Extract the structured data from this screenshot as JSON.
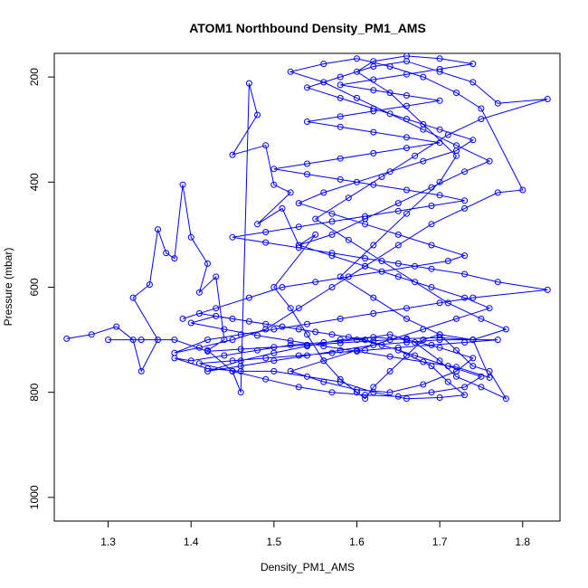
{
  "chart_data": {
    "type": "line",
    "title": "ATOM1 Northbound Density_PM1_AMS",
    "xlabel": "Density_PM1_AMS",
    "ylabel": "Pressure (mbar)",
    "xlim": [
      1.235,
      1.845
    ],
    "ylim": [
      1045,
      155
    ],
    "y_axis_inverted": true,
    "xticks": [
      "1.3",
      "1.4",
      "1.5",
      "1.6",
      "1.7",
      "1.8"
    ],
    "xtick_values": [
      1.3,
      1.4,
      1.5,
      1.6,
      1.7,
      1.8
    ],
    "yticks": [
      "200",
      "400",
      "600",
      "800",
      "1000"
    ],
    "ytick_values": [
      200,
      400,
      600,
      800,
      1000
    ],
    "marker": "open-circle",
    "color": "#0000ff",
    "grid": false,
    "series": [
      {
        "points": [
          [
            1.25,
            698
          ],
          [
            1.28,
            690
          ],
          [
            1.31,
            675
          ],
          [
            1.33,
            700
          ],
          [
            1.34,
            760
          ],
          [
            1.36,
            700
          ],
          [
            1.33,
            620
          ],
          [
            1.35,
            595
          ],
          [
            1.36,
            490
          ],
          [
            1.37,
            535
          ],
          [
            1.38,
            545
          ],
          [
            1.39,
            405
          ],
          [
            1.4,
            505
          ],
          [
            1.42,
            555
          ],
          [
            1.41,
            610
          ],
          [
            1.43,
            580
          ],
          [
            1.44,
            700
          ],
          [
            1.42,
            720
          ],
          [
            1.45,
            760
          ],
          [
            1.46,
            800
          ],
          [
            1.47,
            212
          ],
          [
            1.48,
            272
          ],
          [
            1.45,
            348
          ],
          [
            1.49,
            330
          ],
          [
            1.5,
            405
          ],
          [
            1.52,
            420
          ],
          [
            1.48,
            480
          ],
          [
            1.51,
            450
          ],
          [
            1.53,
            520
          ],
          [
            1.55,
            500
          ],
          [
            1.5,
            600
          ],
          [
            1.52,
            640
          ],
          [
            1.54,
            690
          ],
          [
            1.56,
            740
          ],
          [
            1.58,
            775
          ],
          [
            1.6,
            800
          ],
          [
            1.61,
            812
          ],
          [
            1.62,
            790
          ],
          [
            1.64,
            760
          ],
          [
            1.66,
            730
          ],
          [
            1.68,
            700
          ],
          [
            1.7,
            690
          ],
          [
            1.72,
            720
          ],
          [
            1.74,
            750
          ],
          [
            1.76,
            760
          ],
          [
            1.78,
            812
          ],
          [
            1.75,
            790
          ],
          [
            1.72,
            770
          ],
          [
            1.7,
            740
          ],
          [
            1.67,
            705
          ],
          [
            1.64,
            690
          ],
          [
            1.6,
            700
          ],
          [
            1.56,
            705
          ],
          [
            1.52,
            710
          ],
          [
            1.48,
            720
          ],
          [
            1.44,
            730
          ],
          [
            1.4,
            740
          ],
          [
            1.38,
            735
          ],
          [
            1.42,
            755
          ],
          [
            1.46,
            760
          ],
          [
            1.5,
            760
          ],
          [
            1.54,
            770
          ],
          [
            1.58,
            780
          ],
          [
            1.62,
            800
          ],
          [
            1.66,
            812
          ],
          [
            1.7,
            810
          ],
          [
            1.73,
            805
          ],
          [
            1.71,
            780
          ],
          [
            1.69,
            750
          ],
          [
            1.65,
            720
          ],
          [
            1.61,
            700
          ],
          [
            1.57,
            690
          ],
          [
            1.53,
            680
          ],
          [
            1.49,
            670
          ],
          [
            1.45,
            660
          ],
          [
            1.41,
            650
          ],
          [
            1.39,
            660
          ],
          [
            1.43,
            640
          ],
          [
            1.47,
            620
          ],
          [
            1.51,
            600
          ],
          [
            1.55,
            590
          ],
          [
            1.59,
            580
          ],
          [
            1.63,
            570
          ],
          [
            1.67,
            560
          ],
          [
            1.71,
            550
          ],
          [
            1.73,
            540
          ],
          [
            1.69,
            520
          ],
          [
            1.65,
            500
          ],
          [
            1.61,
            480
          ],
          [
            1.57,
            460
          ],
          [
            1.53,
            440
          ],
          [
            1.56,
            420
          ],
          [
            1.6,
            400
          ],
          [
            1.64,
            380
          ],
          [
            1.68,
            360
          ],
          [
            1.72,
            340
          ],
          [
            1.74,
            320
          ],
          [
            1.7,
            300
          ],
          [
            1.66,
            280
          ],
          [
            1.62,
            260
          ],
          [
            1.58,
            240
          ],
          [
            1.54,
            220
          ],
          [
            1.58,
            200
          ],
          [
            1.62,
            180
          ],
          [
            1.66,
            170
          ],
          [
            1.7,
            190
          ],
          [
            1.74,
            210
          ],
          [
            1.77,
            250
          ],
          [
            1.83,
            242
          ],
          [
            1.75,
            280
          ],
          [
            1.71,
            310
          ],
          [
            1.67,
            350
          ],
          [
            1.63,
            390
          ],
          [
            1.59,
            430
          ],
          [
            1.55,
            470
          ],
          [
            1.59,
            510
          ],
          [
            1.63,
            550
          ],
          [
            1.67,
            590
          ],
          [
            1.71,
            630
          ],
          [
            1.75,
            660
          ],
          [
            1.78,
            680
          ],
          [
            1.74,
            700
          ],
          [
            1.7,
            700
          ],
          [
            1.66,
            705
          ],
          [
            1.62,
            710
          ],
          [
            1.58,
            720
          ],
          [
            1.54,
            730
          ],
          [
            1.5,
            740
          ],
          [
            1.46,
            750
          ],
          [
            1.42,
            760
          ],
          [
            1.46,
            740
          ],
          [
            1.5,
            725
          ],
          [
            1.54,
            712
          ],
          [
            1.58,
            700
          ],
          [
            1.62,
            695
          ],
          [
            1.66,
            700
          ],
          [
            1.7,
            715
          ],
          [
            1.74,
            735
          ],
          [
            1.72,
            760
          ],
          [
            1.68,
            785
          ],
          [
            1.64,
            800
          ],
          [
            1.6,
            795
          ],
          [
            1.56,
            780
          ],
          [
            1.52,
            760
          ],
          [
            1.56,
            740
          ],
          [
            1.6,
            720
          ],
          [
            1.64,
            700
          ],
          [
            1.68,
            680
          ],
          [
            1.72,
            660
          ],
          [
            1.76,
            640
          ],
          [
            1.73,
            620
          ],
          [
            1.69,
            600
          ],
          [
            1.65,
            580
          ],
          [
            1.61,
            560
          ],
          [
            1.57,
            540
          ],
          [
            1.53,
            520
          ],
          [
            1.57,
            500
          ],
          [
            1.61,
            470
          ],
          [
            1.65,
            440
          ],
          [
            1.69,
            410
          ],
          [
            1.73,
            380
          ],
          [
            1.76,
            360
          ],
          [
            1.72,
            330
          ],
          [
            1.68,
            300
          ],
          [
            1.64,
            270
          ],
          [
            1.6,
            240
          ],
          [
            1.56,
            210
          ],
          [
            1.52,
            190
          ],
          [
            1.56,
            175
          ],
          [
            1.6,
            165
          ],
          [
            1.64,
            180
          ],
          [
            1.68,
            200
          ],
          [
            1.72,
            230
          ],
          [
            1.75,
            260
          ],
          [
            1.8,
            415
          ],
          [
            1.77,
            420
          ],
          [
            1.73,
            450
          ],
          [
            1.69,
            480
          ],
          [
            1.65,
            520
          ],
          [
            1.61,
            560
          ],
          [
            1.57,
            600
          ],
          [
            1.53,
            640
          ],
          [
            1.49,
            680
          ],
          [
            1.45,
            700
          ],
          [
            1.41,
            715
          ],
          [
            1.38,
            725
          ],
          [
            1.42,
            700
          ],
          [
            1.46,
            690
          ],
          [
            1.5,
            680
          ],
          [
            1.54,
            670
          ],
          [
            1.58,
            660
          ],
          [
            1.62,
            650
          ],
          [
            1.66,
            640
          ],
          [
            1.7,
            630
          ],
          [
            1.74,
            620
          ],
          [
            1.83,
            605
          ],
          [
            1.77,
            590
          ],
          [
            1.73,
            575
          ],
          [
            1.69,
            565
          ],
          [
            1.65,
            555
          ],
          [
            1.61,
            545
          ],
          [
            1.57,
            535
          ],
          [
            1.53,
            525
          ],
          [
            1.49,
            515
          ],
          [
            1.45,
            505
          ],
          [
            1.49,
            495
          ],
          [
            1.53,
            485
          ],
          [
            1.57,
            475
          ],
          [
            1.61,
            465
          ],
          [
            1.65,
            455
          ],
          [
            1.69,
            445
          ],
          [
            1.73,
            435
          ],
          [
            1.7,
            425
          ],
          [
            1.66,
            415
          ],
          [
            1.62,
            405
          ],
          [
            1.58,
            395
          ],
          [
            1.54,
            385
          ],
          [
            1.5,
            375
          ],
          [
            1.54,
            365
          ],
          [
            1.58,
            355
          ],
          [
            1.62,
            345
          ],
          [
            1.66,
            335
          ],
          [
            1.7,
            325
          ],
          [
            1.66,
            315
          ],
          [
            1.62,
            305
          ],
          [
            1.58,
            295
          ],
          [
            1.54,
            285
          ],
          [
            1.58,
            275
          ],
          [
            1.62,
            265
          ],
          [
            1.66,
            255
          ],
          [
            1.7,
            245
          ],
          [
            1.66,
            235
          ],
          [
            1.62,
            225
          ],
          [
            1.58,
            215
          ],
          [
            1.62,
            205
          ],
          [
            1.66,
            195
          ],
          [
            1.7,
            185
          ],
          [
            1.74,
            175
          ],
          [
            1.7,
            165
          ],
          [
            1.66,
            160
          ],
          [
            1.62,
            170
          ],
          [
            1.6,
            190
          ],
          [
            1.64,
            230
          ],
          [
            1.68,
            290
          ],
          [
            1.72,
            350
          ],
          [
            1.7,
            400
          ],
          [
            1.66,
            460
          ],
          [
            1.62,
            520
          ],
          [
            1.58,
            580
          ],
          [
            1.62,
            620
          ],
          [
            1.66,
            660
          ],
          [
            1.7,
            690
          ],
          [
            1.74,
            700
          ],
          [
            1.77,
            700
          ],
          [
            1.73,
            705
          ],
          [
            1.69,
            710
          ],
          [
            1.65,
            715
          ],
          [
            1.61,
            720
          ],
          [
            1.57,
            725
          ],
          [
            1.53,
            730
          ],
          [
            1.49,
            735
          ],
          [
            1.45,
            740
          ],
          [
            1.41,
            745
          ],
          [
            1.45,
            760
          ],
          [
            1.49,
            775
          ],
          [
            1.53,
            790
          ],
          [
            1.57,
            800
          ],
          [
            1.61,
            805
          ],
          [
            1.65,
            808
          ],
          [
            1.69,
            800
          ],
          [
            1.73,
            790
          ],
          [
            1.75,
            770
          ],
          [
            1.71,
            750
          ],
          [
            1.67,
            730
          ],
          [
            1.63,
            710
          ],
          [
            1.59,
            695
          ],
          [
            1.55,
            685
          ],
          [
            1.51,
            675
          ],
          [
            1.47,
            665
          ],
          [
            1.43,
            655
          ],
          [
            1.4,
            668
          ],
          [
            1.44,
            680
          ],
          [
            1.48,
            692
          ],
          [
            1.52,
            702
          ],
          [
            1.56,
            712
          ],
          [
            1.6,
            722
          ],
          [
            1.64,
            732
          ],
          [
            1.68,
            742
          ],
          [
            1.72,
            752
          ],
          [
            1.76,
            772
          ],
          [
            1.74,
            700
          ],
          [
            1.7,
            696
          ],
          [
            1.66,
            698
          ],
          [
            1.62,
            702
          ],
          [
            1.58,
            706
          ],
          [
            1.54,
            710
          ],
          [
            1.5,
            714
          ],
          [
            1.46,
            718
          ],
          [
            1.42,
            722
          ],
          [
            1.38,
            700
          ],
          [
            1.34,
            700
          ],
          [
            1.3,
            700
          ]
        ]
      }
    ]
  }
}
